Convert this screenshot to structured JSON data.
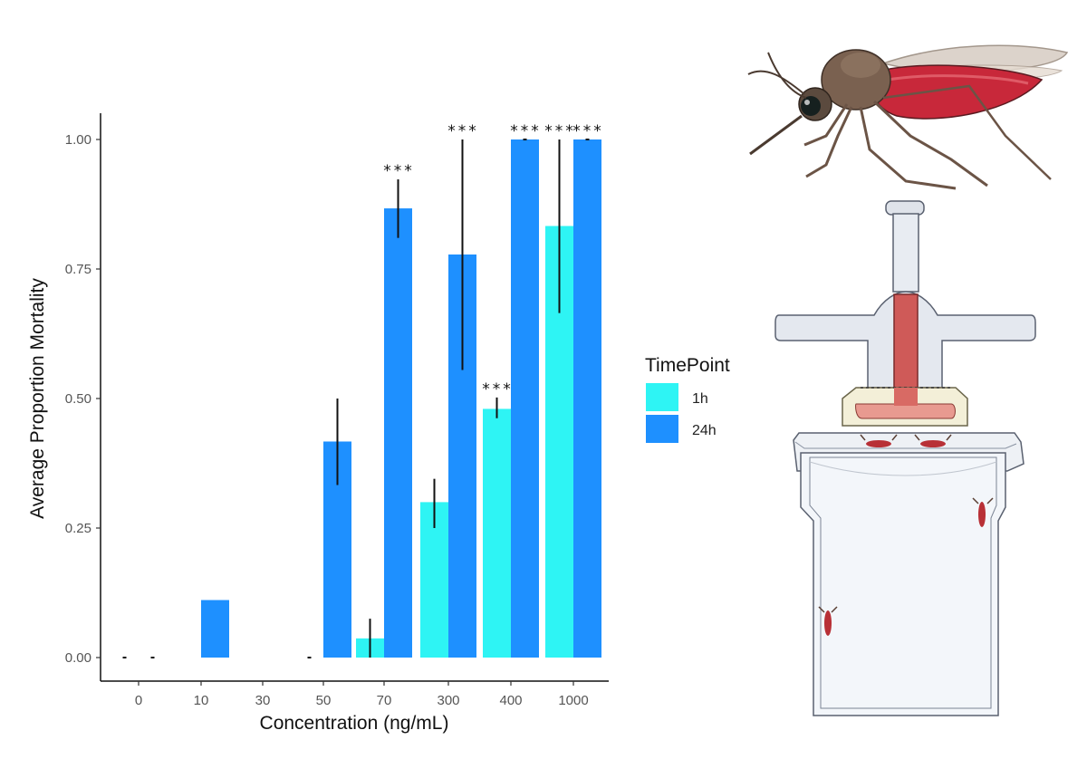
{
  "chart_data": {
    "type": "bar",
    "title": "",
    "xlabel": "Concentration (ng/mL)",
    "ylabel": "Average Proportion Mortality",
    "ylim": [
      0,
      1
    ],
    "yticks": [
      0,
      0.25,
      0.5,
      0.75,
      1
    ],
    "ytick_labels": [
      "0.00",
      "0.25",
      "0.50",
      "0.75",
      "1.00"
    ],
    "categories": [
      "0",
      "10",
      "30",
      "50",
      "70",
      "300",
      "400",
      "1000"
    ],
    "legend": {
      "title": "TimePoint",
      "position": "right"
    },
    "series": [
      {
        "name": "1h",
        "color": "#2EF4F4",
        "values": [
          0,
          null,
          null,
          0,
          0.037,
          0.3,
          0.48,
          0.833
        ],
        "error": [
          [
            0,
            0
          ],
          null,
          null,
          [
            0,
            0
          ],
          [
            0,
            0.075
          ],
          [
            0.25,
            0.345
          ],
          [
            0.462,
            0.502
          ],
          [
            0.665,
            1.0
          ]
        ],
        "significance": [
          "",
          "",
          "",
          "",
          "",
          "",
          "***",
          "***"
        ]
      },
      {
        "name": "24h",
        "color": "#1E90FF",
        "values": [
          0,
          0.111,
          0,
          0.417,
          0.867,
          0.778,
          1.0,
          1.0
        ],
        "error": [
          [
            0,
            0
          ],
          null,
          null,
          [
            0.333,
            0.5
          ],
          [
            0.81,
            0.923
          ],
          [
            0.555,
            1.0
          ],
          [
            1.0,
            1.0
          ],
          [
            1.0,
            1.0
          ]
        ],
        "significance": [
          "",
          "",
          "",
          "",
          "***",
          "***",
          "***",
          "***"
        ]
      }
    ]
  },
  "illustrations": {
    "mosquito_icon": "blood-fed-mosquito",
    "feeder_icon": "membrane-feeder-on-cup"
  }
}
